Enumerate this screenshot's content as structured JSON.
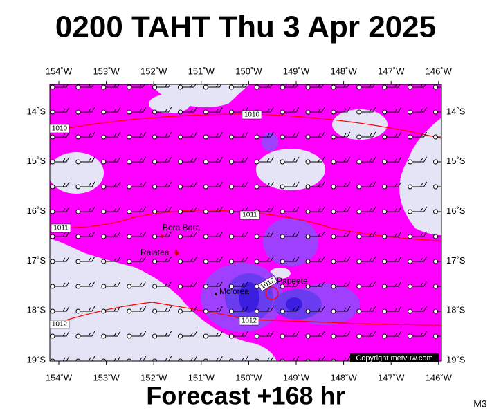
{
  "title": "0200 TAHT Thu 3 Apr 2025",
  "longitude_labels": [
    "154˚W",
    "153˚W",
    "152˚W",
    "151˚W",
    "150˚W",
    "149˚W",
    "148˚W",
    "147˚W",
    "146˚W"
  ],
  "latitude_labels": [
    "14˚S",
    "15˚S",
    "16˚S",
    "17˚S",
    "18˚S",
    "19˚S"
  ],
  "isobar_labels": [
    "1010",
    "1010",
    "1011",
    "1011",
    "1012",
    "1012",
    "1012"
  ],
  "places": [
    "Bora Bora",
    "Raiatea",
    "Mo'orea",
    "Papeete"
  ],
  "copyright": "Copyright metvuw.com",
  "footer": "Forecast +168 hr",
  "model": "M3"
}
